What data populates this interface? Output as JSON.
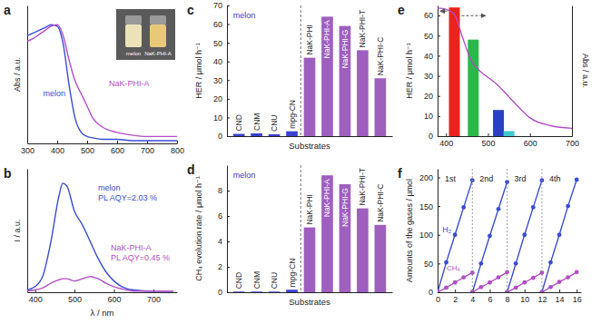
{
  "chart_data": [
    {
      "title": "a",
      "type": "line",
      "x": [
        300,
        320,
        340,
        360,
        380,
        400,
        420,
        440,
        460,
        480,
        500,
        520,
        550,
        600,
        650,
        700,
        750,
        800
      ],
      "series": [
        {
          "name": "melon",
          "color": "#3b4cd8",
          "line_style": "smooth",
          "values": [
            0.78,
            0.8,
            0.82,
            0.84,
            0.86,
            0.85,
            0.72,
            0.42,
            0.18,
            0.08,
            0.05,
            0.04,
            0.03,
            0.03,
            0.02,
            0.02,
            0.02,
            0.02
          ]
        },
        {
          "name": "NaK-PHI-A",
          "color": "#b24fc6",
          "line_style": "smooth",
          "values": [
            0.74,
            0.76,
            0.79,
            0.82,
            0.85,
            0.86,
            0.78,
            0.6,
            0.45,
            0.36,
            0.27,
            0.18,
            0.12,
            0.08,
            0.06,
            0.05,
            0.05,
            0.05
          ]
        }
      ],
      "ylabel": "Abs / a.u.",
      "xlim": [
        300,
        800
      ],
      "xticks": [
        300,
        400,
        500,
        600,
        700,
        800
      ],
      "ylim": [
        0,
        1
      ],
      "tick_labels": "x",
      "annotations": [
        "melon",
        "NaK-PHI-A"
      ]
    },
    {
      "title": "b",
      "type": "line",
      "x": [
        380,
        400,
        420,
        440,
        460,
        470,
        480,
        500,
        520,
        540,
        560,
        580,
        600,
        620,
        650,
        700,
        750
      ],
      "series": [
        {
          "name": "melon",
          "color": "#3b4cd8",
          "line_style": "smooth",
          "values": [
            0.02,
            0.05,
            0.15,
            0.45,
            0.85,
            0.97,
            0.95,
            0.72,
            0.6,
            0.45,
            0.3,
            0.18,
            0.1,
            0.05,
            0.02,
            0.01,
            0.01
          ]
        },
        {
          "name": "NaK-PHI-A",
          "color": "#b24fc6",
          "line_style": "smooth",
          "values": [
            0.01,
            0.02,
            0.04,
            0.08,
            0.11,
            0.12,
            0.12,
            0.1,
            0.12,
            0.14,
            0.12,
            0.08,
            0.05,
            0.03,
            0.01,
            0.01,
            0.01
          ]
        }
      ],
      "xlabel": "λ / nm",
      "ylabel": "I / a.u.",
      "xlim": [
        380,
        760
      ],
      "xticks": [
        400,
        500,
        600,
        700
      ],
      "ylim": [
        0,
        1.1
      ],
      "tick_labels": "x",
      "annotations": [
        "PL AQY=2.03 %",
        "PL AQY=0.45 %"
      ]
    },
    {
      "title": "c",
      "type": "bar",
      "categories": [
        "CND",
        "CNM",
        "CNU",
        "mpg-CN",
        "NaK-PHI",
        "NaK-PHI-A",
        "NaK-PHI-G",
        "NaK-PHI-T",
        "NaK-PHI-C"
      ],
      "values": [
        1.2,
        1.5,
        1.0,
        2.6,
        42,
        64,
        59,
        46,
        31
      ],
      "colors": [
        "#3a40d0",
        "#3a40d0",
        "#3a40d0",
        "#3a40d0",
        "#9e5fbf",
        "#9e5fbf",
        "#9e5fbf",
        "#9e5fbf",
        "#9e5fbf"
      ],
      "xlabel": "Substrates",
      "ylabel": "HER / μmol h⁻¹",
      "ylim": [
        0,
        70
      ],
      "yticks": [
        0,
        10,
        20,
        30,
        40,
        50,
        60,
        70
      ],
      "annotations": [
        "melon"
      ]
    },
    {
      "title": "d",
      "type": "bar",
      "categories": [
        "CND",
        "CNM",
        "CNU",
        "mpg-CN",
        "NaK-PHI",
        "NaK-PHI-A",
        "NaK-PHI-G",
        "NaK-PHI-T",
        "NaK-PHI-C"
      ],
      "values": [
        0.05,
        0.05,
        0.05,
        0.2,
        5.1,
        9.2,
        8.5,
        6.6,
        5.3
      ],
      "colors": [
        "#3a40d0",
        "#3a40d0",
        "#3a40d0",
        "#3a40d0",
        "#9e5fbf",
        "#9e5fbf",
        "#9e5fbf",
        "#9e5fbf",
        "#9e5fbf"
      ],
      "xlabel": "Substrates",
      "ylabel": "CH₄ evolution rate / μmol h⁻¹",
      "ylim": [
        0,
        10
      ],
      "yticks": [
        0,
        2,
        4,
        6,
        8
      ],
      "annotations": [
        "melon"
      ]
    },
    {
      "title": "e",
      "type": "bar",
      "x": [
        420,
        465,
        525,
        550
      ],
      "series": [
        {
          "type": "bar",
          "values": [
            64,
            48,
            13,
            2.5
          ],
          "colors": [
            "#e8241c",
            "#2bb84a",
            "#2a3fc4",
            "#3fc8d0"
          ]
        },
        {
          "type": "line",
          "axis": "y2",
          "color": "#b24fc6",
          "line_style": "smooth",
          "x": [
            380,
            400,
            420,
            440,
            460,
            480,
            500,
            520,
            550,
            580,
            600,
            650,
            700
          ],
          "values": [
            0.98,
            0.97,
            0.93,
            0.75,
            0.58,
            0.5,
            0.45,
            0.4,
            0.3,
            0.2,
            0.14,
            0.08,
            0.06
          ]
        }
      ],
      "ylabel": "HER / μmol h⁻¹",
      "y2label": "Abs / a.u.",
      "xlim": [
        380,
        700
      ],
      "xticks": [
        400,
        500,
        600,
        700
      ],
      "ylim": [
        0,
        65
      ],
      "yticks": [
        0,
        10,
        20,
        30,
        40,
        50,
        60
      ],
      "y2lim": [
        0,
        1
      ],
      "y2ticks": []
    },
    {
      "title": "f",
      "type": "line",
      "series": [
        {
          "name": "H₂",
          "color": "#3b4cd8",
          "marker": "circle",
          "line_style": "solid",
          "x": [
            0,
            1,
            2,
            3,
            4,
            4,
            4,
            5,
            6,
            7,
            8,
            8,
            8,
            9,
            10,
            11,
            12,
            12,
            12,
            13,
            14,
            15,
            16
          ],
          "values": [
            0,
            52,
            100,
            148,
            195,
            null,
            0,
            50,
            98,
            145,
            192,
            null,
            0,
            50,
            100,
            148,
            195,
            null,
            0,
            52,
            100,
            150,
            196
          ]
        },
        {
          "name": "CH₄",
          "color": "#b24fc6",
          "marker": "circle",
          "line_style": "solid",
          "x": [
            0,
            1,
            2,
            3,
            4,
            4,
            4,
            5,
            6,
            7,
            8,
            8,
            8,
            9,
            10,
            11,
            12,
            12,
            12,
            13,
            14,
            15,
            16
          ],
          "values": [
            0,
            8,
            17,
            26,
            34,
            null,
            0,
            9,
            17,
            26,
            35,
            null,
            0,
            8,
            17,
            25,
            34,
            null,
            0,
            9,
            18,
            26,
            35
          ]
        }
      ],
      "ylabel": "Amounts of the gases / μmol",
      "xlim": [
        0,
        16.5
      ],
      "xticks": [
        0,
        2,
        4,
        6,
        8,
        10,
        12,
        14,
        16
      ],
      "ylim": [
        0,
        215
      ],
      "yticks": [
        0,
        50,
        100,
        150,
        200
      ],
      "annotations": [
        "1st",
        "2nd",
        "3rd",
        "4th"
      ]
    }
  ]
}
